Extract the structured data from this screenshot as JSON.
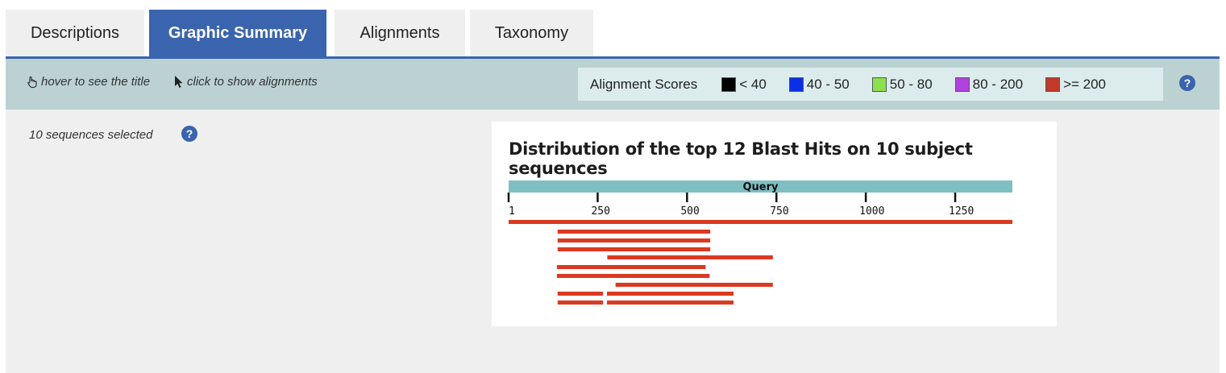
{
  "tabs": [
    {
      "label": "Descriptions",
      "active": false
    },
    {
      "label": "Graphic Summary",
      "active": true
    },
    {
      "label": "Alignments",
      "active": false
    },
    {
      "label": "Taxonomy",
      "active": false
    }
  ],
  "toolbar": {
    "hover_hint": "hover to see the title",
    "click_hint": "click to show alignments",
    "legend_title": "Alignment Scores",
    "legend": [
      {
        "label": "< 40",
        "color": "#000000"
      },
      {
        "label": "40 - 50",
        "color": "#0a2fe6"
      },
      {
        "label": "50 - 80",
        "color": "#8be04e"
      },
      {
        "label": "80 - 200",
        "color": "#b043e0"
      },
      {
        "label": ">= 200",
        "color": "#c23a2a"
      }
    ],
    "help_glyph": "?"
  },
  "sidebar": {
    "selected_text": "10 sequences selected",
    "help_glyph": "?"
  },
  "chart_data": {
    "type": "alignment-map",
    "title": "Distribution of the top 12 Blast Hits on 10 subject sequences",
    "axis_label": "Query",
    "query_range": [
      1,
      1410
    ],
    "ticks": [
      1,
      250,
      500,
      750,
      1000,
      1250
    ],
    "hit_color": "#d93a22",
    "hits": [
      {
        "segments": [
          [
            1,
            1410
          ]
        ]
      },
      {
        "segments": [
          [
            138,
            565
          ]
        ]
      },
      {
        "segments": [
          [
            138,
            565
          ]
        ]
      },
      {
        "segments": [
          [
            138,
            565
          ]
        ]
      },
      {
        "segments": [
          [
            277,
            740
          ]
        ]
      },
      {
        "segments": [
          [
            136,
            552
          ]
        ]
      },
      {
        "segments": [
          [
            136,
            563
          ]
        ]
      },
      {
        "segments": [
          [
            300,
            740
          ]
        ]
      },
      {
        "segments": [
          [
            138,
            265
          ],
          [
            276,
            630
          ]
        ]
      },
      {
        "segments": [
          [
            138,
            265
          ],
          [
            276,
            630
          ]
        ]
      }
    ]
  }
}
